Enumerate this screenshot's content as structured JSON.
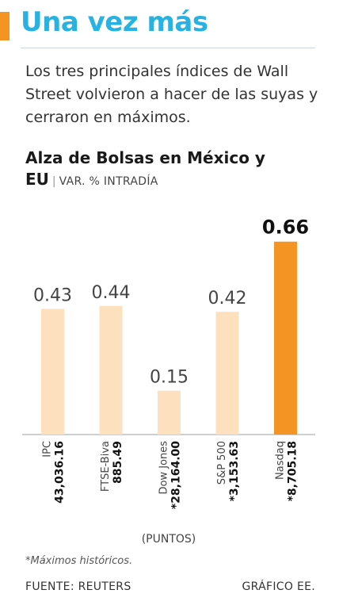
{
  "header": {
    "headline": "Una vez más",
    "lead": "Los tres principales índices de Wall Street volvieron a hacer de las suyas y cerraron en máximos."
  },
  "chart_data": {
    "type": "bar",
    "title": "Alza de Bolsas en México y EU",
    "subtitle": "VAR. % INTRADÍA",
    "categories": [
      "IPC",
      "FTSE-Biva",
      "Dow Jones",
      "S&P 500",
      "Nasdaq"
    ],
    "values": [
      0.43,
      0.44,
      0.15,
      0.42,
      0.66
    ],
    "value_labels": [
      "0.43",
      "0.44",
      "0.15",
      "0.42",
      "0.66"
    ],
    "points": [
      "43,036.16",
      "885.49",
      "*28,164.00",
      "*3,153.63",
      "*8,705.18"
    ],
    "points_unit": "(PUNTOS)",
    "highlight_index": 4,
    "ylim": [
      0,
      0.7
    ],
    "grid": false,
    "colors": {
      "bar": "#fde0bd",
      "highlight": "#f39423",
      "accent": "#27b2e2"
    }
  },
  "footer": {
    "note": "*Máximos históricos.",
    "source": "FUENTE: REUTERS",
    "credit": "GRÁFICO EE."
  }
}
